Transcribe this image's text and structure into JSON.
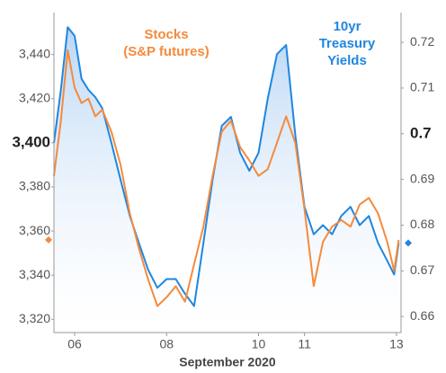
{
  "chart_data": {
    "type": "line",
    "xlabel": "September 2020",
    "x": [
      5.55,
      5.7,
      5.85,
      6.0,
      6.15,
      6.3,
      6.45,
      6.6,
      6.8,
      7.0,
      7.2,
      7.4,
      7.6,
      7.8,
      8.0,
      8.2,
      8.4,
      8.6,
      8.8,
      9.0,
      9.2,
      9.4,
      9.6,
      9.8,
      10.0,
      10.2,
      10.4,
      10.6,
      10.8,
      11.0,
      11.2,
      11.4,
      11.6,
      11.8,
      12.0,
      12.2,
      12.4,
      12.6,
      12.8,
      12.95,
      13.05
    ],
    "xlim": [
      5.55,
      13.1
    ],
    "xticks": [
      {
        "value": 6,
        "label": "06"
      },
      {
        "value": 8,
        "label": "08"
      },
      10,
      11,
      13
    ],
    "ylim": [
      3314,
      3459
    ],
    "yticks": [
      {
        "value": 3320,
        "label": "3,320"
      },
      {
        "value": 3340,
        "label": "3,340"
      },
      {
        "value": 3360,
        "label": "3,360"
      },
      {
        "value": 3380,
        "label": "3,380"
      },
      {
        "value": 3400,
        "label": "3,400"
      },
      {
        "value": 3420,
        "label": "3,420"
      },
      {
        "value": 3440,
        "label": "3,440"
      }
    ],
    "y2lim": [
      0.6565,
      0.7265
    ],
    "y2ticks": [
      0.66,
      0.67,
      0.68,
      0.69,
      0.7,
      0.71,
      0.72
    ],
    "series": [
      {
        "color": "#1f86e0",
        "axis": "y2",
        "area": true,
        "values": [
          0.698,
          0.7096,
          0.7233,
          0.7214,
          0.712,
          0.7096,
          0.708,
          0.7056,
          0.698,
          0.6899,
          0.682,
          0.676,
          0.6702,
          0.6663,
          0.6682,
          0.6682,
          0.665,
          0.6623,
          0.6761,
          0.6899,
          0.7017,
          0.7037,
          0.6958,
          0.6919,
          0.6958,
          0.7076,
          0.7174,
          0.7194,
          0.6997,
          0.684,
          0.678,
          0.68,
          0.678,
          0.682,
          0.684,
          0.68,
          0.682,
          0.6761,
          0.6722,
          0.6692,
          0.6761
        ]
      },
      {
        "color": "#f58a3d",
        "axis": "y",
        "values": [
          3385,
          3410,
          3442,
          3425,
          3418,
          3420,
          3412,
          3415,
          3405,
          3390,
          3368,
          3352,
          3338,
          3326,
          3330,
          3335,
          3328,
          3345,
          3362,
          3385,
          3405,
          3410,
          3398,
          3392,
          3385,
          3388,
          3400,
          3412,
          3400,
          3370,
          3335,
          3355,
          3362,
          3365,
          3362,
          3372,
          3375,
          3368,
          3355,
          3342,
          3356
        ]
      }
    ],
    "annotations": [
      {
        "lines": [
          "Stocks",
          "(S&P futures)"
        ],
        "color": "#f58a3d"
      },
      {
        "lines": [
          "10yr",
          "Treasury",
          "Yields"
        ],
        "color": "#1f86e0"
      }
    ]
  }
}
